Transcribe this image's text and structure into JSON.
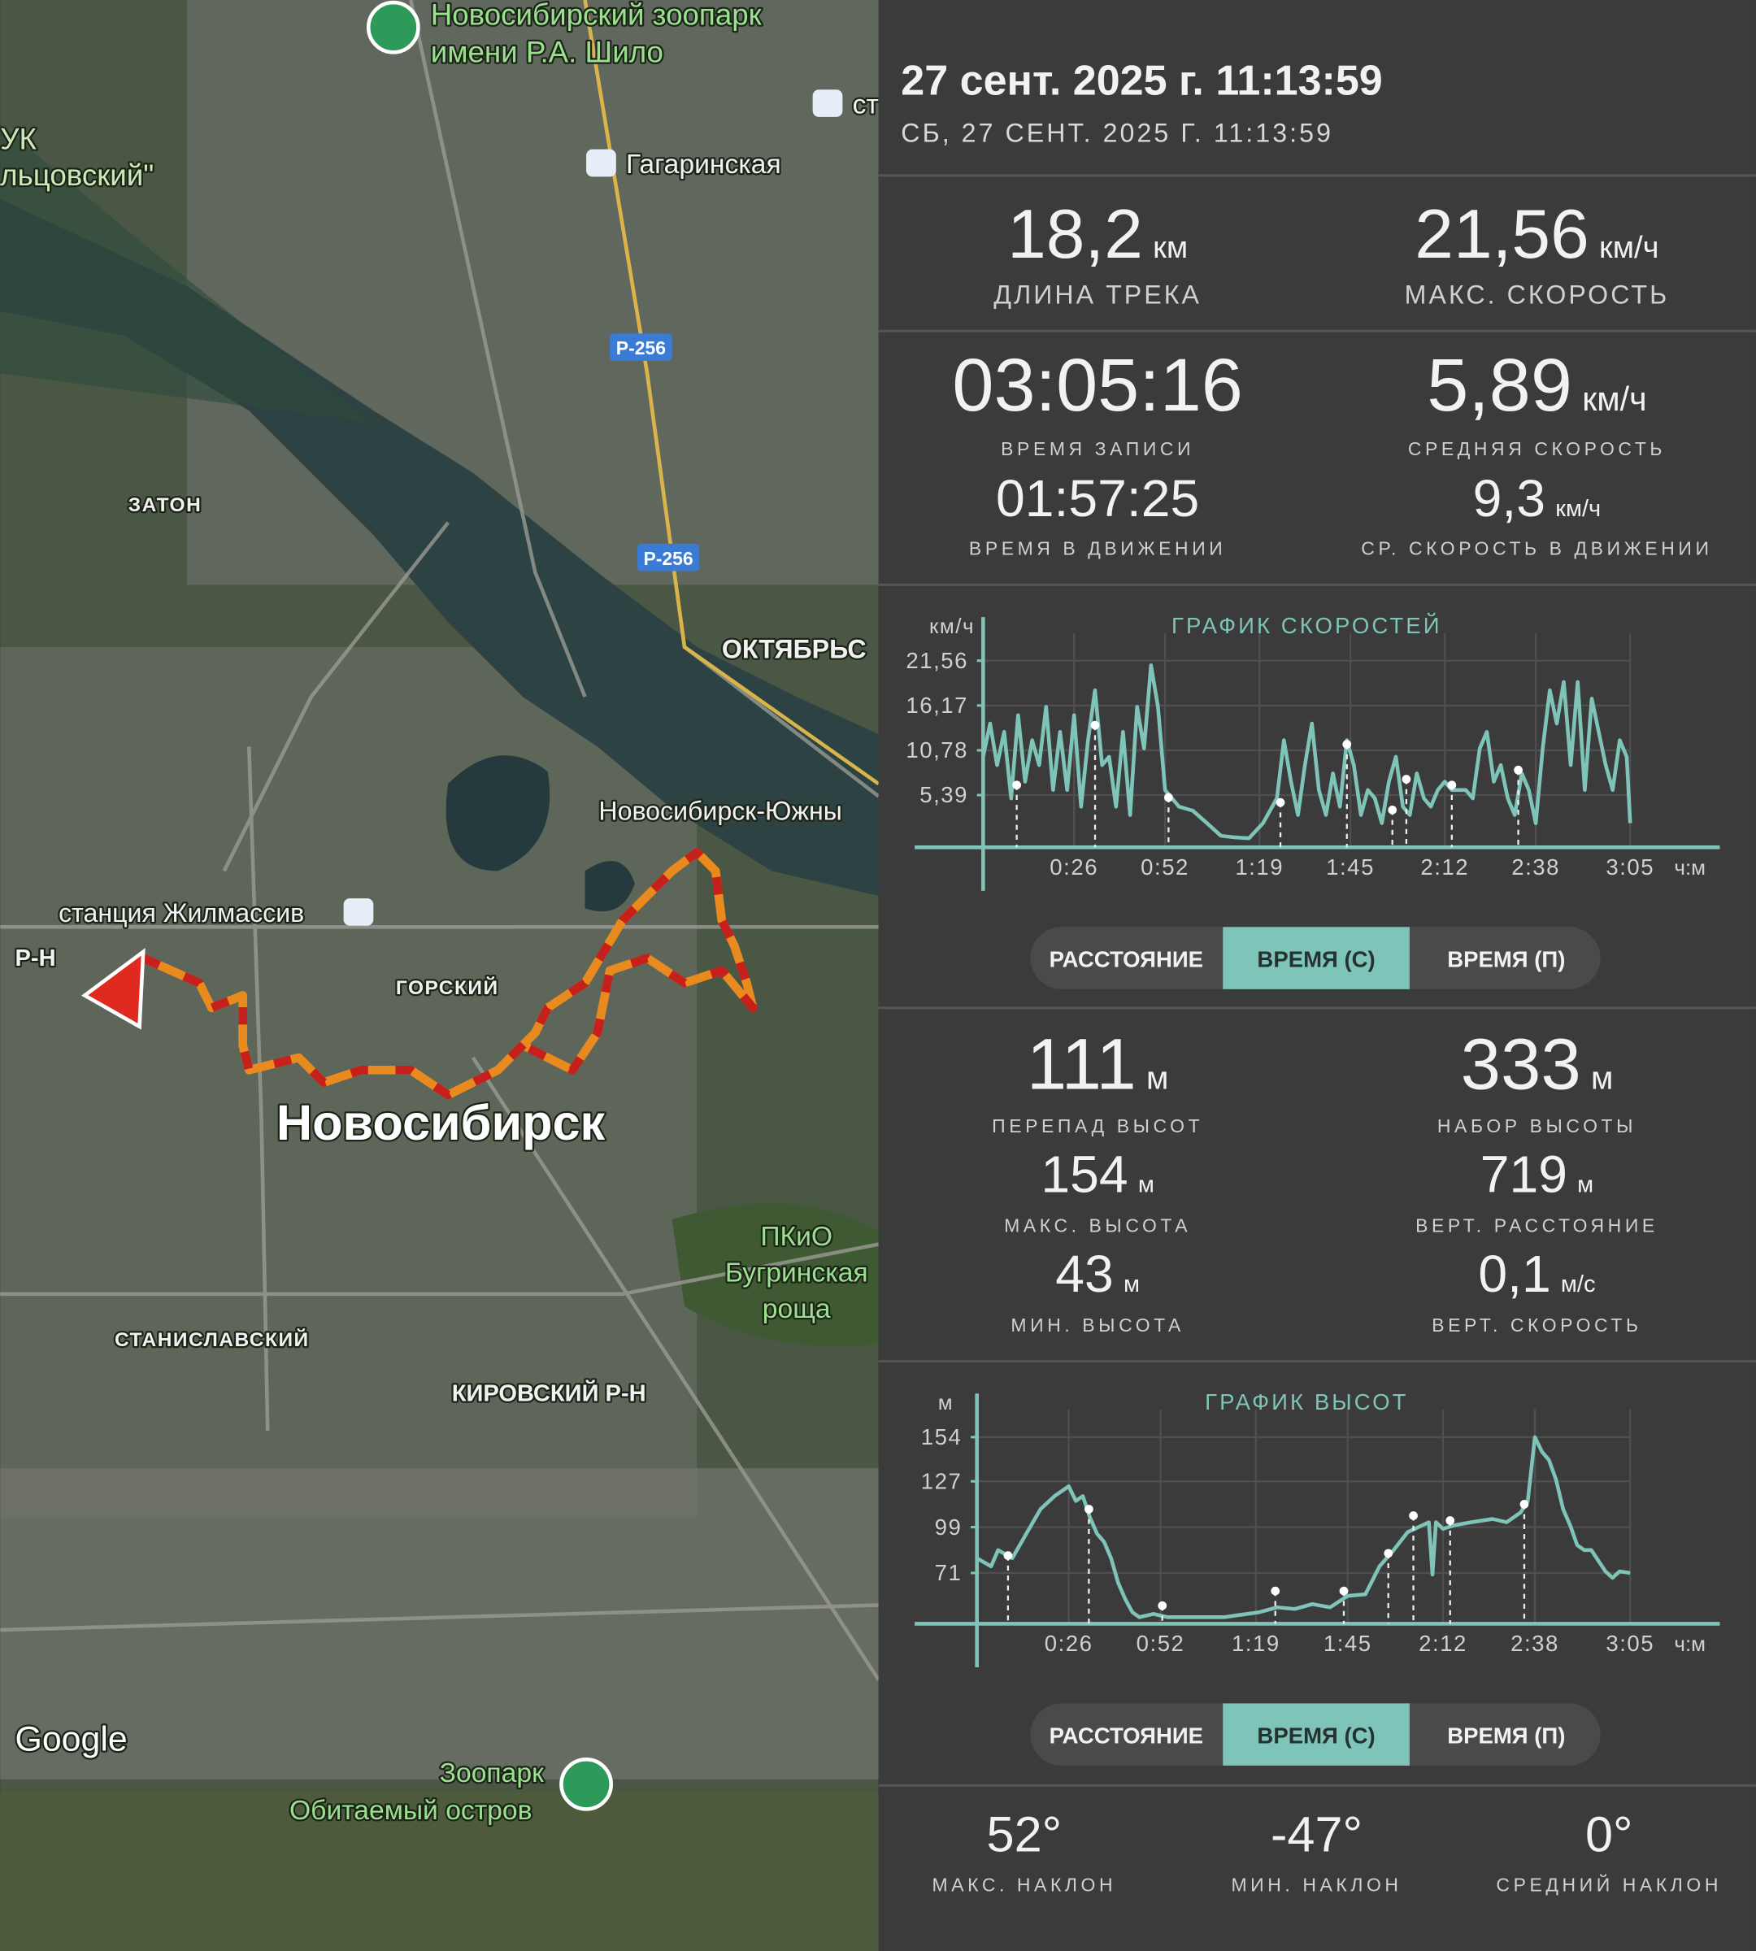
{
  "header": {
    "title": "27 сент. 2025 г. 11:13:59",
    "subtitle": "СБ, 27 СЕНТ. 2025 Г. 11:13:59"
  },
  "map": {
    "labels": [
      "Новосибирский зоопарк",
      "имени Р.А. Шило",
      "ст",
      "Гагаринская",
      "УК",
      "льцовский\"",
      "Р-256",
      "Р-256",
      "ЗАТОН",
      "ОКТЯБРЬС",
      "Новосибирск-Южны",
      "станция Жилмассив",
      "Р-Н",
      "ГОРСКИЙ",
      "Новосибирск",
      "ПКиО",
      "Бугринская",
      "роща",
      "СТАНИСЛАВСКИЙ",
      "КИРОВСКИЙ Р-Н",
      "Google",
      "Зоопарк",
      "Обитаемый остров"
    ]
  },
  "summary": [
    {
      "value": "18,2",
      "unit": "км",
      "label": "ДЛИНА ТРЕКА"
    },
    {
      "value": "21,56",
      "unit": "км/ч",
      "label": "МАКС. СКОРОСТЬ"
    },
    {
      "value": "03:05:16",
      "label": "ВРЕМЯ ЗАПИСИ"
    },
    {
      "value": "5,89",
      "unit": "км/ч",
      "label": "СРЕДНЯЯ СКОРОСТЬ"
    },
    {
      "value": "01:57:25",
      "label": "ВРЕМЯ В ДВИЖЕНИИ"
    },
    {
      "value": "9,3",
      "unit": "км/ч",
      "label": "СР. СКОРОСТЬ В ДВИЖЕНИИ"
    }
  ],
  "speed_tabs": {
    "tabs": [
      "РАССТОЯНИЕ",
      "ВРЕМЯ (С)",
      "ВРЕМЯ (П)"
    ],
    "active": 1
  },
  "elevation_stats": [
    {
      "value": "111",
      "unit": "м",
      "label": "ПЕРЕПАД ВЫСОТ"
    },
    {
      "value": "333",
      "unit": "м",
      "label": "НАБОР ВЫСОТЫ"
    },
    {
      "value": "154",
      "unit": "м",
      "label": "МАКС. ВЫСОТА"
    },
    {
      "value": "719",
      "unit": "м",
      "label": "ВЕРТ. РАССТОЯНИЕ"
    },
    {
      "value": "43",
      "unit": "м",
      "label": "МИН. ВЫСОТА"
    },
    {
      "value": "0,1",
      "unit": "м/с",
      "label": "ВЕРТ. СКОРОСТЬ"
    }
  ],
  "elevation_tabs": {
    "tabs": [
      "РАССТОЯНИЕ",
      "ВРЕМЯ (С)",
      "ВРЕМЯ (П)"
    ],
    "active": 1
  },
  "slope_stats": [
    {
      "value": "52°",
      "label": "МАКС. НАКЛОН"
    },
    {
      "value": "-47°",
      "label": "МИН. НАКЛОН"
    },
    {
      "value": "0°",
      "label": "СРЕДНИЙ НАКЛОН"
    }
  ],
  "chart_data": [
    {
      "type": "line",
      "title": "ГРАФИК СКОРОСТЕЙ",
      "y_unit": "км/ч",
      "x_unit": "ч:м",
      "color": "#7fc4b8",
      "grid": true,
      "x": [
        0,
        2,
        4,
        6,
        8,
        10,
        12,
        14,
        16,
        18,
        20,
        22,
        24,
        26,
        28,
        30,
        32,
        34,
        36,
        38,
        40,
        42,
        44,
        46,
        48,
        50,
        52,
        56,
        60,
        64,
        68,
        72,
        76,
        80,
        84,
        86,
        88,
        90,
        92,
        94,
        96,
        98,
        100,
        102,
        104,
        106,
        108,
        110,
        112,
        114,
        116,
        118,
        120,
        122,
        124,
        126,
        128,
        130,
        132,
        134,
        136,
        138,
        140,
        142,
        144,
        146,
        148,
        150,
        152,
        154,
        156,
        158,
        160,
        162,
        164,
        166,
        168,
        170,
        172,
        174,
        176,
        178,
        180,
        182,
        184,
        185
      ],
      "values": [
        10,
        14,
        9,
        13,
        5,
        15,
        7,
        12,
        9,
        16,
        6,
        13,
        6,
        15,
        4,
        12,
        18,
        9,
        10,
        4,
        13,
        3,
        16,
        11,
        21,
        16,
        6,
        4,
        3.5,
        2,
        0.5,
        0.3,
        0.2,
        2,
        5,
        12,
        7,
        3,
        9,
        14,
        6,
        3,
        8,
        4,
        12,
        9,
        3,
        6,
        5,
        2,
        7,
        10,
        4,
        3,
        8,
        5,
        4,
        6,
        7,
        6,
        6,
        6,
        5,
        11,
        13,
        7,
        9,
        5,
        3,
        8,
        6,
        2,
        11,
        18,
        14,
        19,
        9,
        19,
        6,
        17,
        13,
        9,
        6,
        12,
        10,
        2
      ],
      "markers": {
        "x": [
          9.6,
          32,
          53,
          85,
          104,
          117,
          121,
          134,
          153
        ],
        "values": [
          6.6,
          13.8,
          5.1,
          4.5,
          11.5,
          3.6,
          7.3,
          6.6,
          8.4
        ]
      },
      "xlim": [
        0,
        185
      ],
      "ylim": [
        0,
        21.56
      ],
      "xticks": [
        {
          "value": 26,
          "label": "0:26"
        },
        {
          "value": 52,
          "label": "0:52"
        },
        {
          "value": 79,
          "label": "1:19"
        },
        {
          "value": 105,
          "label": "1:45"
        },
        {
          "value": 132,
          "label": "2:12"
        },
        {
          "value": 158,
          "label": "2:38"
        },
        {
          "value": 185,
          "label": "3:05"
        }
      ],
      "yticks": [
        {
          "value": 5.39,
          "label": "5,39"
        },
        {
          "value": 10.78,
          "label": "10,78"
        },
        {
          "value": 16.17,
          "label": "16,17"
        },
        {
          "value": 21.56,
          "label": "21,56"
        }
      ]
    },
    {
      "type": "line",
      "title": "ГРАФИК ВЫСОТ",
      "y_unit": "м",
      "x_unit": "ч:м",
      "color": "#7fc4b8",
      "grid": true,
      "x": [
        0,
        4,
        6,
        10,
        14,
        18,
        22,
        26,
        28,
        30,
        32,
        34,
        36,
        38,
        40,
        42,
        44,
        46,
        50,
        54,
        60,
        70,
        80,
        85,
        90,
        95,
        100,
        105,
        110,
        114,
        118,
        122,
        124,
        126,
        128,
        129,
        130,
        132,
        135,
        140,
        146,
        150,
        154,
        156,
        158,
        160,
        162,
        164,
        166,
        168,
        170,
        172,
        174,
        178,
        180,
        182,
        185
      ],
      "values": [
        80,
        75,
        85,
        80,
        95,
        110,
        118,
        124,
        115,
        118,
        105,
        95,
        90,
        80,
        65,
        55,
        47,
        44,
        46,
        44,
        44,
        44,
        47,
        50,
        49,
        52,
        50,
        57,
        58,
        75,
        85,
        96,
        98,
        100,
        102,
        70,
        102,
        98,
        100,
        102,
        104,
        102,
        108,
        115,
        154,
        145,
        140,
        128,
        110,
        100,
        88,
        85,
        85,
        72,
        68,
        72,
        71
      ],
      "markers": {
        "x": [
          8.8,
          31.7,
          52.5,
          84.5,
          103.9,
          116.5,
          123.6,
          134,
          155
        ],
        "values": [
          81.6,
          110,
          51,
          60,
          60,
          83,
          106,
          103,
          113
        ]
      },
      "xlim": [
        0,
        185
      ],
      "ylim": [
        43,
        154
      ],
      "xticks": [
        {
          "value": 26,
          "label": "0:26"
        },
        {
          "value": 52,
          "label": "0:52"
        },
        {
          "value": 79,
          "label": "1:19"
        },
        {
          "value": 105,
          "label": "1:45"
        },
        {
          "value": 132,
          "label": "2:12"
        },
        {
          "value": 158,
          "label": "2:38"
        },
        {
          "value": 185,
          "label": "3:05"
        }
      ],
      "yticks": [
        71,
        99,
        127,
        154
      ]
    }
  ]
}
